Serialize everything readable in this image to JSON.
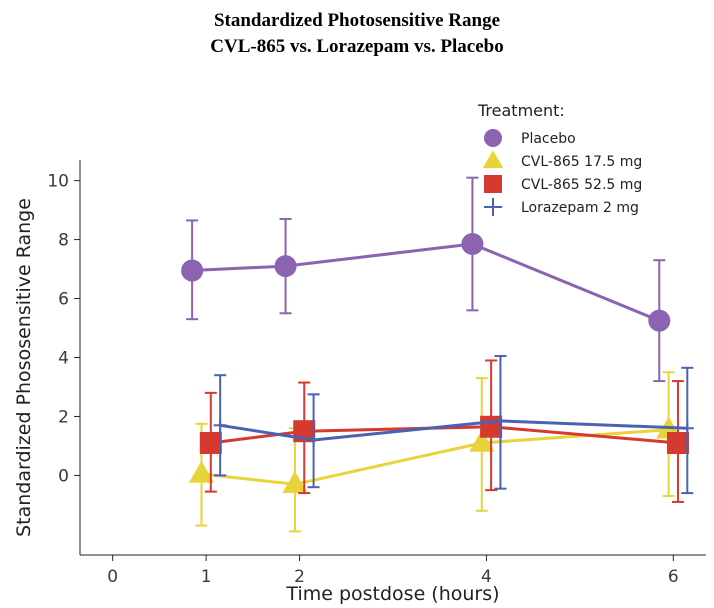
{
  "chart_data": {
    "type": "line",
    "title": "Standardized Photosensitive Range",
    "subtitle": "CVL-865 vs. Lorazepam vs. Placebo",
    "xlabel": "Time postdose (hours)",
    "ylabel": "Standardized Phososensitive Range",
    "x_ticks": [
      "0",
      "1",
      "2",
      "4",
      "6"
    ],
    "y_ticks": [
      "0",
      "2",
      "4",
      "6",
      "8",
      "10"
    ],
    "xlim": [
      -0.35,
      6.35
    ],
    "ylim": [
      -2.7,
      10.7
    ],
    "x_tick_values": [
      0,
      1,
      2,
      4,
      6
    ],
    "y_tick_values": [
      0,
      2,
      4,
      6,
      8,
      10
    ],
    "grid": false,
    "legend": {
      "title": "Treatment:",
      "position": "top-right"
    },
    "series": [
      {
        "name": "Placebo",
        "marker": "circle",
        "color": "#8b63b0",
        "x": [
          0.85,
          1.85,
          3.85,
          5.85
        ],
        "y": [
          6.95,
          7.1,
          7.85,
          5.25
        ],
        "err_low": [
          5.3,
          5.5,
          5.6,
          3.2
        ],
        "err_high": [
          8.65,
          8.7,
          10.1,
          7.3
        ]
      },
      {
        "name": "CVL-865 17.5 mg",
        "marker": "triangle",
        "color": "#e8d43a",
        "x": [
          0.95,
          1.95,
          3.95,
          5.95
        ],
        "y": [
          0.05,
          -0.3,
          1.1,
          1.55
        ],
        "err_low": [
          -1.7,
          -1.9,
          -1.2,
          -0.7
        ],
        "err_high": [
          1.75,
          1.6,
          3.3,
          3.5
        ]
      },
      {
        "name": "CVL-865 52.5 mg",
        "marker": "square",
        "color": "#d6392e",
        "x": [
          1.05,
          2.05,
          4.05,
          6.05
        ],
        "y": [
          1.1,
          1.5,
          1.65,
          1.1
        ],
        "err_low": [
          -0.55,
          -0.6,
          -0.5,
          -0.9
        ],
        "err_high": [
          2.8,
          3.15,
          3.9,
          3.2
        ]
      },
      {
        "name": "Lorazepam 2 mg",
        "marker": "plus",
        "color": "#4a62b4",
        "x": [
          1.15,
          2.15,
          4.15,
          6.15
        ],
        "y": [
          1.7,
          1.2,
          1.85,
          1.6
        ],
        "err_low": [
          0.0,
          -0.4,
          -0.45,
          -0.6
        ],
        "err_high": [
          3.4,
          2.75,
          4.05,
          3.65
        ]
      }
    ]
  }
}
